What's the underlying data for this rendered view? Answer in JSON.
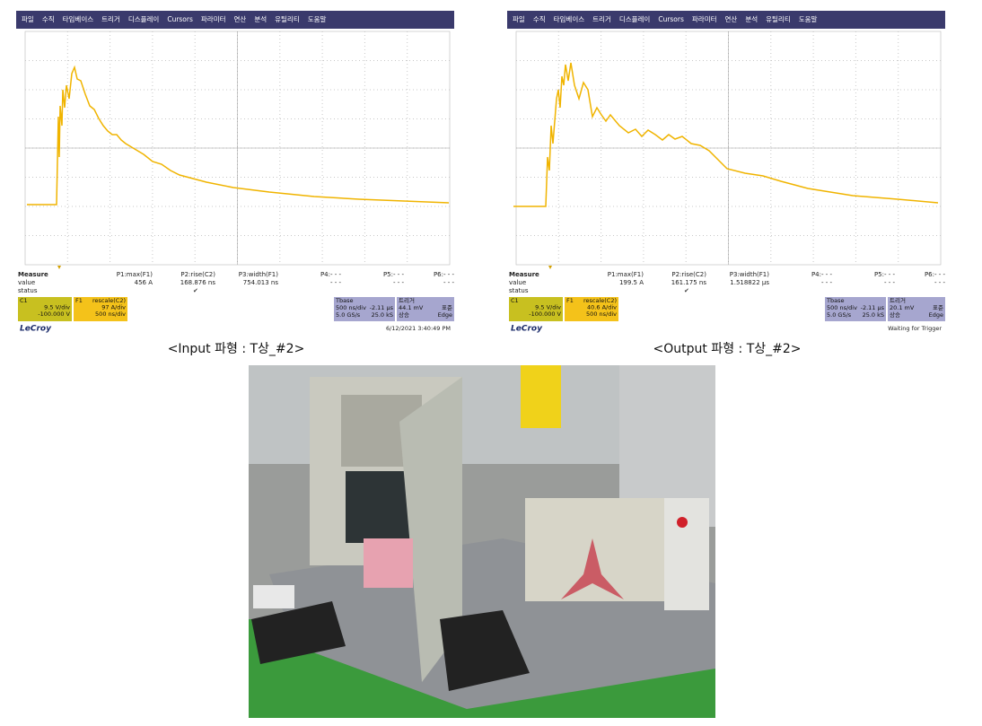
{
  "scopes": [
    {
      "menu": [
        "파일",
        "수직",
        "타임베이스",
        "트리거",
        "디스플레이",
        "Cursors",
        "파라미터",
        "연산",
        "분석",
        "유틸리티",
        "도움말"
      ],
      "measure_rows": [
        [
          "Measure",
          "P1:max(F1)",
          "P2:rise(C2)",
          "P3:width(F1)",
          "P4:- - -",
          "P5:- - -",
          "P6:- - -"
        ],
        [
          "value",
          "456 A",
          "168.876 ns",
          "754.013 ns",
          "- - -",
          "- - -",
          "- - -"
        ],
        [
          "status"
        ]
      ],
      "c1": [
        "C1",
        "9.5 V/div",
        "-100.000 V"
      ],
      "f1": [
        "F1",
        "rescale(C2)",
        "97 A/div",
        "500 ns/div"
      ],
      "tbase": [
        "Tbase",
        "-2.11 µs",
        "500 ns/div",
        "25.0 kS",
        "5.0 GS/s"
      ],
      "trigger": [
        "트리거",
        "표준",
        "44.1 mV",
        "Edge",
        "상승"
      ],
      "brand": "LeCroy",
      "footer": "6/12/2021 3:40:49 PM",
      "caption": "<Input 파형 : T상_#2>"
    },
    {
      "menu": [
        "파일",
        "수직",
        "타임베이스",
        "트리거",
        "디스플레이",
        "Cursors",
        "파라미터",
        "연산",
        "분석",
        "유틸리티",
        "도움말"
      ],
      "measure_rows": [
        [
          "Measure",
          "P1:max(F1)",
          "P2:rise(C2)",
          "P3:width(F1)",
          "P4:- - -",
          "P5:- - -",
          "P6:- - -"
        ],
        [
          "value",
          "199.5 A",
          "161.175 ns",
          "1.518822 µs",
          "- - -",
          "- - -",
          "- - -"
        ],
        [
          "status"
        ]
      ],
      "c1": [
        "C1",
        "9.5 V/div",
        "-100.000 V"
      ],
      "f1": [
        "F1",
        "rescale(C2)",
        "40.6 A/div",
        "500 ns/div"
      ],
      "tbase": [
        "Tbase",
        "-2.11 µs",
        "500 ns/div",
        "25.0 kS",
        "5.0 GS/s"
      ],
      "trigger": [
        "트리거",
        "표준",
        "20.1 mV",
        "Edge",
        "상승"
      ],
      "brand": "LeCroy",
      "footer": "Waiting for Trigger",
      "caption": "<Output 파형 : T상_#2>"
    }
  ]
}
